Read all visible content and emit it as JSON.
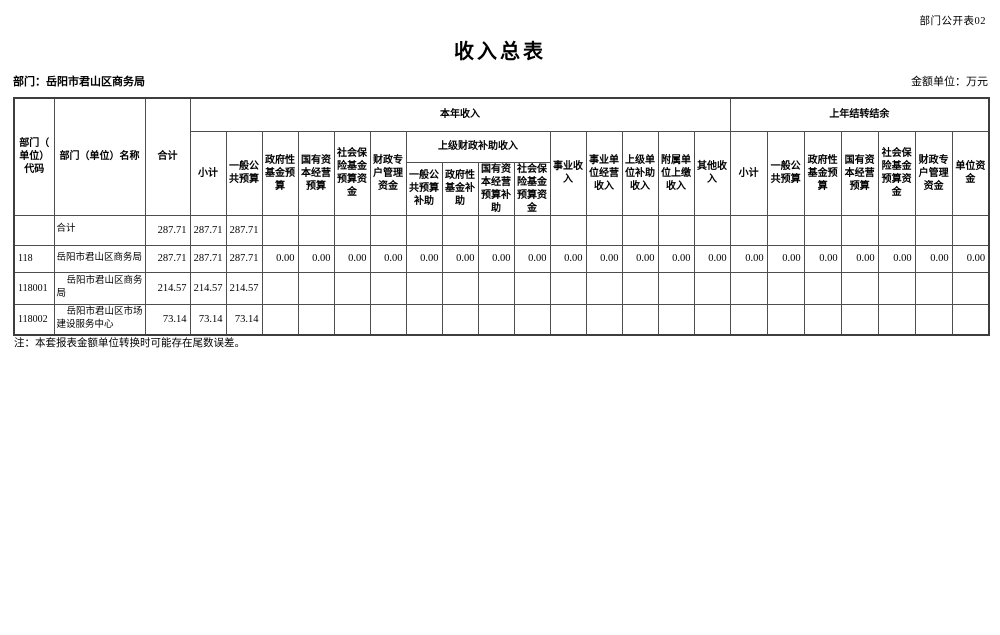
{
  "page": {
    "corner_label": "部门公开表02",
    "title": "收入总表",
    "department_label": "部门：岳阳市君山区商务局",
    "unit_label": "金额单位：万元",
    "note": "注：本套报表金额单位转换时可能存在尾数误差。"
  },
  "table": {
    "header": {
      "code": "部门（单位）代码",
      "name": "部门（单位）名称",
      "total": "合计",
      "current_year_group": "本年收入",
      "current_year_cols_pre": [
        "小计",
        "一般公共预算",
        "政府性基金预算",
        "国有资本经营预算",
        "社会保险基金预算资金",
        "财政专户管理资金"
      ],
      "subsidy_group": "上级财政补助收入",
      "subsidy_cols": [
        "一般公共预算补助",
        "政府性基金补助",
        "国有资本经营预算补助",
        "社会保险基金预算资金"
      ],
      "current_year_cols_post": [
        "事业收入",
        "事业单位经营收入",
        "上级单位补助收入",
        "附属单位上缴收入",
        "其他收入"
      ],
      "carryover_group": "上年结转结余",
      "carryover_cols": [
        "小计",
        "一般公共预算",
        "政府性基金预算",
        "国有资本经营预算",
        "社会保险基金预算资金",
        "财政专户管理资金",
        "单位资金"
      ]
    },
    "rows": [
      {
        "code": "",
        "name": "合计",
        "indent": false,
        "values": [
          "287.71",
          "287.71",
          "287.71",
          "",
          "",
          "",
          "",
          "",
          "",
          "",
          "",
          "",
          "",
          "",
          "",
          "",
          "",
          "",
          "",
          "",
          "",
          "",
          ""
        ]
      },
      {
        "code": "118",
        "name": "岳阳市君山区商务局",
        "indent": false,
        "values": [
          "287.71",
          "287.71",
          "287.71",
          "0.00",
          "0.00",
          "0.00",
          "0.00",
          "0.00",
          "0.00",
          "0.00",
          "0.00",
          "0.00",
          "0.00",
          "0.00",
          "0.00",
          "0.00",
          "0.00",
          "0.00",
          "0.00",
          "0.00",
          "0.00",
          "0.00",
          "0.00"
        ]
      },
      {
        "code": "118001",
        "name": "岳阳市君山区商务局",
        "indent": true,
        "values": [
          "214.57",
          "214.57",
          "214.57",
          "",
          "",
          "",
          "",
          "",
          "",
          "",
          "",
          "",
          "",
          "",
          "",
          "",
          "",
          "",
          "",
          "",
          "",
          "",
          ""
        ]
      },
      {
        "code": "118002",
        "name": "岳阳市君山区市场建设服务中心",
        "indent": true,
        "values": [
          "73.14",
          "73.14",
          "73.14",
          "",
          "",
          "",
          "",
          "",
          "",
          "",
          "",
          "",
          "",
          "",
          "",
          "",
          "",
          "",
          "",
          "",
          "",
          "",
          ""
        ]
      }
    ]
  }
}
